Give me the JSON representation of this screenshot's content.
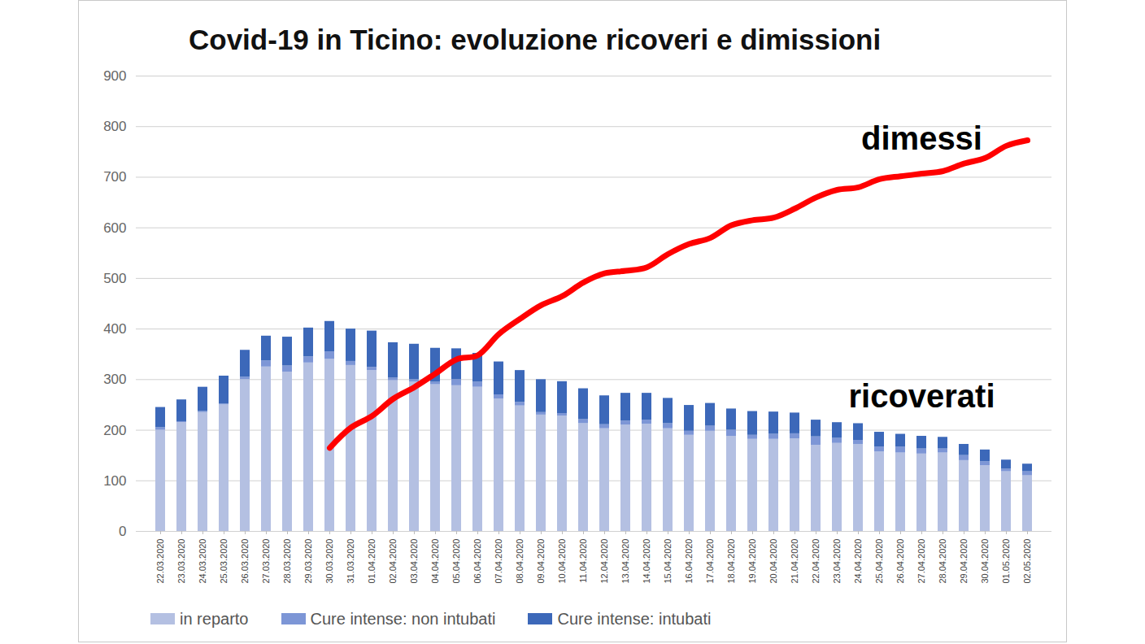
{
  "chart_data": {
    "type": "bar",
    "title": "Covid-19 in Ticino: evoluzione ricoveri e  dimissioni",
    "categories": [
      "22.03.2020",
      "23.03.2020",
      "24.03.2020",
      "25.03.2020",
      "26.03.2020",
      "27.03.2020",
      "28.03.2020",
      "29.03.2020",
      "30.03.2020",
      "31.03.2020",
      "01.04.2020",
      "02.04.2020",
      "03.04.2020",
      "04.04.2020",
      "05.04.2020",
      "06.04.2020",
      "07.04.2020",
      "08.04.2020",
      "09.04.2020",
      "10.04.2020",
      "11.04.2020",
      "12.04.2020",
      "13.04.2020",
      "14.04.2020",
      "15.04.2020",
      "16.04.2020",
      "17.04.2020",
      "18.04.2020",
      "19.04.2020",
      "20.04.2020",
      "21.04.2020",
      "22.04.2020",
      "23.04.2020",
      "24.04.2020",
      "25.04.2020",
      "26.04.2020",
      "27.04.2020",
      "28.04.2020",
      "29.04.2020",
      "30.04.2020",
      "01.05.2020",
      "02.05.2020"
    ],
    "series": [
      {
        "name": "in reparto",
        "color": "#b4c0e2",
        "type": "bar",
        "values": [
          200,
          215,
          235,
          250,
          300,
          325,
          315,
          333,
          340,
          328,
          318,
          298,
          295,
          290,
          288,
          285,
          262,
          248,
          230,
          228,
          213,
          203,
          210,
          212,
          203,
          190,
          198,
          188,
          182,
          182,
          183,
          170,
          174,
          172,
          157,
          155,
          153,
          155,
          140,
          130,
          118,
          110
        ]
      },
      {
        "name": "Cure intense: non intubati",
        "color": "#7d96d6",
        "type": "bar",
        "values": [
          5,
          2,
          2,
          2,
          5,
          12,
          12,
          12,
          15,
          8,
          6,
          5,
          5,
          5,
          12,
          10,
          8,
          7,
          5,
          5,
          8,
          8,
          8,
          8,
          10,
          8,
          10,
          12,
          8,
          10,
          10,
          17,
          10,
          8,
          10,
          12,
          10,
          8,
          10,
          8,
          5,
          8
        ]
      },
      {
        "name": "Cure intense: intubati",
        "color": "#3c68b9",
        "type": "bar",
        "values": [
          40,
          43,
          48,
          55,
          53,
          49,
          57,
          57,
          60,
          64,
          72,
          70,
          70,
          67,
          61,
          57,
          65,
          63,
          65,
          63,
          61,
          57,
          55,
          53,
          50,
          51,
          45,
          42,
          47,
          44,
          41,
          33,
          31,
          33,
          29,
          25,
          25,
          23,
          22,
          23,
          18,
          15
        ]
      },
      {
        "name": "dimessi",
        "color": "#ff0000",
        "type": "line",
        "values": [
          null,
          null,
          null,
          null,
          null,
          null,
          null,
          null,
          165,
          205,
          228,
          262,
          285,
          312,
          340,
          348,
          390,
          420,
          447,
          465,
          492,
          510,
          515,
          522,
          548,
          568,
          580,
          605,
          615,
          620,
          638,
          660,
          675,
          680,
          696,
          702,
          707,
          712,
          727,
          738,
          762,
          773
        ]
      }
    ],
    "annotations": [
      {
        "text": "ricoverati"
      }
    ],
    "ylim": [
      0,
      900
    ],
    "yticks": [
      0,
      100,
      200,
      300,
      400,
      500,
      600,
      700,
      800,
      900
    ],
    "grid": true,
    "stacked": true,
    "legend": "bottom"
  }
}
